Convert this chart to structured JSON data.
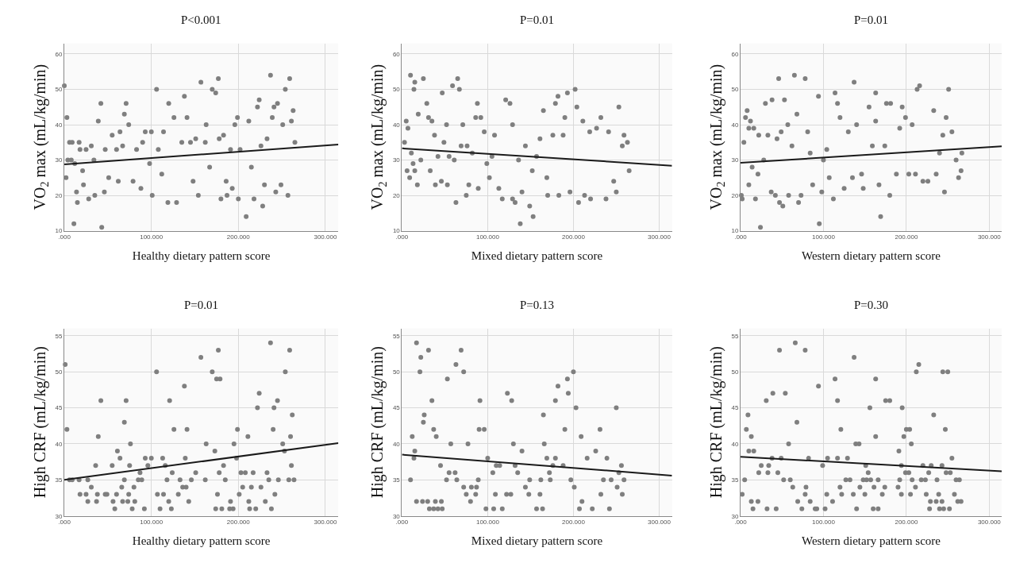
{
  "chart_data": [
    {
      "type": "scatter",
      "title": "P<0.001",
      "xlabel": "Healthy dietary pattern score",
      "ylabel": "VO$_{2}$ max (mL/kg/min)",
      "xlim": [
        0,
        315
      ],
      "ylim": [
        10,
        63
      ],
      "xticks": [
        {
          "value": 0,
          "label": ".000"
        },
        {
          "value": 100,
          "label": "100.000"
        },
        {
          "value": 200,
          "label": "200.000"
        },
        {
          "value": 300,
          "label": "300.000"
        }
      ],
      "yticks": [
        10,
        20,
        30,
        40,
        50,
        60
      ],
      "grid": true,
      "marker": "circle",
      "series": [
        {
          "color": "#7f7f7f",
          "x": [
            0,
            3,
            2,
            4,
            6,
            9,
            8,
            11,
            12,
            14,
            15,
            17,
            18,
            21,
            22,
            25,
            28,
            31,
            34,
            35,
            39,
            42,
            43,
            46,
            47,
            51,
            55,
            60,
            62,
            64,
            67,
            69,
            71,
            74,
            79,
            83,
            88,
            90,
            93,
            98,
            100,
            101,
            106,
            108,
            112,
            114,
            119,
            120,
            126,
            129,
            135,
            138,
            141,
            145,
            148,
            151,
            154,
            157,
            162,
            163,
            167,
            170,
            174,
            177,
            178,
            180,
            183,
            186,
            187,
            191,
            193,
            196,
            199,
            200,
            202,
            209,
            212,
            215,
            218,
            222,
            224,
            226,
            228,
            230,
            233,
            237,
            239,
            241,
            243,
            245,
            249,
            251,
            254,
            257,
            259,
            261,
            263,
            265
          ],
          "values": [
            51,
            42,
            25,
            30,
            35,
            35,
            30,
            12,
            29,
            21,
            18,
            35,
            33,
            27,
            23,
            33,
            19,
            34,
            30,
            20,
            41,
            46,
            11,
            21,
            33,
            25,
            37,
            33,
            24,
            38,
            34,
            43,
            46,
            40,
            24,
            33,
            22,
            35,
            38,
            29,
            38,
            20,
            50,
            33,
            26,
            38,
            18,
            46,
            42,
            18,
            35,
            48,
            42,
            35,
            24,
            36,
            20,
            52,
            35,
            40,
            28,
            50,
            49,
            53,
            36,
            19,
            37,
            24,
            20,
            33,
            22,
            40,
            42,
            19,
            33,
            14,
            41,
            28,
            19,
            45,
            47,
            34,
            17,
            23,
            36,
            54,
            42,
            45,
            21,
            46,
            23,
            40,
            50,
            20,
            53,
            41,
            44,
            35
          ]
        },
        {
          "type": "line",
          "color": "#1a1a1a",
          "x": [
            0,
            315
          ],
          "values": [
            28.8,
            34.4
          ],
          "marker": "none"
        }
      ]
    },
    {
      "type": "scatter",
      "title": "P=0.01",
      "xlabel": "Mixed dietary pattern score",
      "ylabel": "VO$_{2}$ max (mL/kg/min)",
      "xlim": [
        0,
        315
      ],
      "ylim": [
        10,
        63
      ],
      "xticks": [
        {
          "value": 0,
          "label": ".000"
        },
        {
          "value": 100,
          "label": "100.000"
        },
        {
          "value": 200,
          "label": "200.000"
        },
        {
          "value": 300,
          "label": "300.000"
        }
      ],
      "yticks": [
        10,
        20,
        30,
        40,
        50,
        60
      ],
      "grid": true,
      "marker": "circle",
      "series": [
        {
          "color": "#7f7f7f",
          "x": [
            3,
            5,
            6,
            7,
            9,
            10,
            11,
            13,
            14,
            15,
            15,
            18,
            19,
            22,
            25,
            29,
            31,
            33,
            35,
            38,
            39,
            42,
            46,
            47,
            49,
            52,
            53,
            55,
            59,
            61,
            63,
            65,
            67,
            69,
            71,
            75,
            76,
            78,
            82,
            86,
            88,
            89,
            92,
            96,
            99,
            102,
            105,
            108,
            113,
            117,
            121,
            126,
            129,
            129,
            132,
            136,
            138,
            140,
            144,
            149,
            152,
            153,
            157,
            161,
            165,
            169,
            170,
            176,
            179,
            182,
            183,
            188,
            190,
            193,
            196,
            202,
            204,
            206,
            211,
            213,
            219,
            220,
            227,
            232,
            238,
            241,
            247,
            250,
            253,
            257,
            259,
            263,
            265
          ],
          "values": [
            35,
            41,
            27,
            39,
            25,
            54,
            32,
            29,
            50,
            52,
            27,
            23,
            43,
            30,
            53,
            46,
            42,
            27,
            41,
            37,
            23,
            31,
            24,
            49,
            35,
            40,
            23,
            31,
            51,
            30,
            18,
            53,
            50,
            34,
            40,
            20,
            34,
            23,
            32,
            42,
            46,
            22,
            42,
            38,
            29,
            25,
            31,
            37,
            22,
            19,
            47,
            46,
            40,
            19,
            18,
            30,
            12,
            21,
            34,
            17,
            27,
            14,
            31,
            36,
            44,
            25,
            20,
            37,
            46,
            48,
            20,
            37,
            42,
            49,
            21,
            50,
            45,
            18,
            41,
            20,
            38,
            19,
            39,
            42,
            19,
            38,
            24,
            21,
            45,
            34,
            37,
            35,
            27
          ]
        },
        {
          "type": "line",
          "color": "#1a1a1a",
          "x": [
            0,
            315
          ],
          "values": [
            33.3,
            28.4
          ],
          "marker": "none"
        }
      ]
    },
    {
      "type": "scatter",
      "title": "P=0.01",
      "xlabel": "Western dietary pattern score",
      "ylabel": "VO$_{2}$ max (mL/kg/min)",
      "xlim": [
        0,
        315
      ],
      "ylim": [
        10,
        63
      ],
      "xticks": [
        {
          "value": 0,
          "label": ".000"
        },
        {
          "value": 100,
          "label": "100.000"
        },
        {
          "value": 200,
          "label": "200.000"
        },
        {
          "value": 300,
          "label": "300.000"
        }
      ],
      "yticks": [
        10,
        20,
        30,
        40,
        50,
        60
      ],
      "grid": true,
      "marker": "circle",
      "series": [
        {
          "color": "#7f7f7f",
          "x": [
            1,
            2,
            4,
            6,
            8,
            10,
            10,
            12,
            14,
            16,
            18,
            21,
            22,
            24,
            28,
            30,
            33,
            37,
            38,
            42,
            44,
            46,
            47,
            49,
            51,
            53,
            57,
            58,
            62,
            65,
            68,
            70,
            73,
            78,
            81,
            84,
            87,
            94,
            95,
            98,
            100,
            104,
            107,
            112,
            114,
            117,
            120,
            125,
            130,
            135,
            137,
            140,
            146,
            148,
            155,
            159,
            163,
            163,
            167,
            169,
            174,
            176,
            180,
            181,
            188,
            192,
            195,
            199,
            203,
            207,
            211,
            213,
            216,
            220,
            226,
            233,
            236,
            240,
            244,
            246,
            248,
            251,
            255,
            260,
            263,
            266,
            267
          ],
          "values": [
            20,
            19,
            35,
            42,
            44,
            39,
            23,
            41,
            28,
            39,
            19,
            26,
            37,
            11,
            30,
            46,
            37,
            21,
            47,
            20,
            36,
            53,
            18,
            38,
            17,
            47,
            40,
            20,
            34,
            54,
            43,
            18,
            20,
            53,
            38,
            32,
            23,
            48,
            12,
            21,
            30,
            33,
            25,
            19,
            49,
            46,
            42,
            22,
            38,
            25,
            52,
            40,
            26,
            22,
            45,
            34,
            41,
            49,
            23,
            14,
            34,
            46,
            20,
            46,
            26,
            39,
            45,
            42,
            26,
            40,
            26,
            50,
            51,
            24,
            24,
            44,
            26,
            32,
            37,
            21,
            42,
            50,
            38,
            30,
            25,
            27,
            32
          ]
        },
        {
          "type": "line",
          "color": "#1a1a1a",
          "x": [
            0,
            315
          ],
          "values": [
            29.2,
            33.9
          ],
          "marker": "none"
        }
      ]
    },
    {
      "type": "scatter",
      "title": "P=0.01",
      "xlabel": "Healthy dietary pattern score",
      "ylabel": "High CRF (mL/kg/min)",
      "xlim": [
        0,
        315
      ],
      "ylim": [
        30,
        56
      ],
      "xticks": [
        {
          "value": 0,
          "label": ".000"
        },
        {
          "value": 100,
          "label": "100.000"
        },
        {
          "value": 200,
          "label": "200.000"
        },
        {
          "value": 300,
          "label": "300.000"
        }
      ],
      "yticks": [
        30,
        35,
        40,
        45,
        50,
        55
      ],
      "grid": true,
      "marker": "circle",
      "series": [
        {
          "color": "#7f7f7f",
          "x": [
            1,
            3,
            6,
            9,
            17,
            18,
            25,
            27,
            27,
            31,
            36,
            37,
            38,
            39,
            42,
            47,
            49,
            55,
            56,
            58,
            60,
            61,
            64,
            66,
            67,
            69,
            69,
            71,
            73,
            74,
            75,
            76,
            78,
            80,
            81,
            85,
            87,
            89,
            92,
            93,
            96,
            100,
            106,
            107,
            110,
            113,
            114,
            116,
            118,
            120,
            121,
            123,
            124,
            126,
            131,
            133,
            136,
            138,
            139,
            140,
            141,
            143,
            146,
            151,
            157,
            162,
            163,
            170,
            173,
            174,
            175,
            176,
            177,
            178,
            179,
            181,
            183,
            185,
            190,
            191,
            194,
            195,
            198,
            199,
            201,
            203,
            205,
            208,
            211,
            212,
            213,
            215,
            217,
            220,
            222,
            224,
            226,
            231,
            233,
            235,
            237,
            238,
            240,
            241,
            242,
            245,
            246,
            251,
            253,
            254,
            258,
            259,
            260,
            261,
            262,
            264
          ],
          "values": [
            51,
            42,
            35,
            35,
            35,
            33,
            33,
            32,
            35,
            34,
            37,
            32,
            33,
            41,
            46,
            33,
            33,
            37,
            32,
            31,
            33,
            39,
            38,
            34,
            32,
            35,
            43,
            46,
            32,
            33,
            37,
            40,
            31,
            34,
            32,
            35,
            36,
            35,
            31,
            38,
            37,
            38,
            50,
            33,
            31,
            38,
            33,
            37,
            35,
            32,
            46,
            31,
            36,
            42,
            33,
            35,
            34,
            48,
            38,
            34,
            42,
            32,
            35,
            36,
            52,
            35,
            40,
            50,
            39,
            31,
            49,
            33,
            53,
            36,
            49,
            31,
            37,
            35,
            31,
            32,
            31,
            40,
            38,
            42,
            33,
            36,
            34,
            36,
            41,
            32,
            31,
            34,
            36,
            31,
            45,
            47,
            34,
            32,
            36,
            35,
            54,
            31,
            42,
            45,
            33,
            46,
            35,
            40,
            39,
            50,
            35,
            53,
            41,
            37,
            44,
            35
          ]
        },
        {
          "type": "line",
          "color": "#1a1a1a",
          "x": [
            0,
            315
          ],
          "values": [
            35.0,
            40.1
          ],
          "marker": "none"
        }
      ]
    },
    {
      "type": "scatter",
      "title": "P=0.13",
      "xlabel": "Mixed dietary pattern score",
      "ylabel": "High CRF (mL/kg/min)",
      "xlim": [
        0,
        315
      ],
      "ylim": [
        30,
        56
      ],
      "xticks": [
        {
          "value": 0,
          "label": ".000"
        },
        {
          "value": 100,
          "label": "100.000"
        },
        {
          "value": 200,
          "label": "200.000"
        },
        {
          "value": 300,
          "label": "300.000"
        }
      ],
      "yticks": [
        30,
        35,
        40,
        45,
        50,
        55
      ],
      "grid": true,
      "marker": "circle",
      "series": [
        {
          "color": "#7f7f7f",
          "x": [
            10,
            12,
            14,
            15,
            17,
            17,
            21,
            22,
            24,
            25,
            26,
            30,
            31,
            32,
            35,
            37,
            37,
            39,
            40,
            42,
            45,
            46,
            47,
            52,
            53,
            55,
            57,
            62,
            63,
            64,
            69,
            72,
            72,
            75,
            77,
            80,
            81,
            86,
            87,
            89,
            90,
            91,
            96,
            98,
            100,
            106,
            107,
            109,
            110,
            114,
            117,
            122,
            123,
            127,
            128,
            130,
            132,
            135,
            140,
            144,
            148,
            149,
            157,
            161,
            162,
            164,
            165,
            166,
            169,
            172,
            173,
            176,
            179,
            179,
            182,
            188,
            190,
            193,
            194,
            197,
            200,
            201,
            203,
            207,
            209,
            210,
            216,
            222,
            226,
            231,
            232,
            235,
            239,
            242,
            244,
            250,
            251,
            253,
            256,
            257,
            259
          ],
          "values": [
            35,
            41,
            38,
            39,
            54,
            32,
            50,
            52,
            32,
            43,
            44,
            32,
            53,
            31,
            46,
            31,
            42,
            32,
            41,
            31,
            37,
            32,
            31,
            35,
            49,
            36,
            40,
            36,
            51,
            35,
            53,
            50,
            34,
            33,
            40,
            32,
            34,
            33,
            34,
            35,
            42,
            46,
            42,
            31,
            38,
            36,
            31,
            33,
            37,
            37,
            31,
            33,
            47,
            33,
            46,
            40,
            37,
            36,
            39,
            34,
            33,
            35,
            31,
            33,
            35,
            31,
            44,
            40,
            38,
            36,
            35,
            37,
            38,
            46,
            48,
            37,
            42,
            49,
            47,
            35,
            50,
            34,
            45,
            31,
            41,
            32,
            38,
            31,
            39,
            42,
            33,
            35,
            38,
            31,
            35,
            45,
            34,
            36,
            37,
            33,
            35
          ]
        },
        {
          "type": "line",
          "color": "#1a1a1a",
          "x": [
            0,
            315
          ],
          "values": [
            38.5,
            35.6
          ],
          "marker": "none"
        }
      ]
    },
    {
      "type": "scatter",
      "title": "P=0.30",
      "xlabel": "Western dietary pattern score",
      "ylabel": "High CRF (mL/kg/min)",
      "xlim": [
        0,
        315
      ],
      "ylim": [
        30,
        56
      ],
      "xticks": [
        {
          "value": 0,
          "label": ".000"
        },
        {
          "value": 100,
          "label": "100.000"
        },
        {
          "value": 200,
          "label": "200.000"
        },
        {
          "value": 300,
          "label": "300.000"
        }
      ],
      "yticks": [
        30,
        35,
        40,
        45,
        50,
        55
      ],
      "grid": true,
      "marker": "circle",
      "series": [
        {
          "color": "#7f7f7f",
          "x": [
            2,
            5,
            7,
            9,
            10,
            13,
            13,
            15,
            16,
            21,
            22,
            25,
            31,
            32,
            33,
            34,
            38,
            39,
            43,
            45,
            47,
            49,
            52,
            54,
            58,
            60,
            63,
            66,
            68,
            69,
            74,
            78,
            78,
            79,
            82,
            84,
            90,
            92,
            94,
            99,
            102,
            104,
            105,
            111,
            114,
            117,
            117,
            120,
            121,
            122,
            127,
            129,
            132,
            136,
            137,
            139,
            140,
            143,
            144,
            148,
            150,
            151,
            152,
            154,
            156,
            157,
            160,
            161,
            163,
            163,
            166,
            166,
            171,
            174,
            175,
            180,
            190,
            191,
            192,
            194,
            194,
            195,
            197,
            199,
            200,
            203,
            204,
            205,
            206,
            207,
            211,
            212,
            215,
            218,
            220,
            223,
            224,
            227,
            228,
            229,
            230,
            233,
            236,
            237,
            239,
            240,
            243,
            243,
            244,
            245,
            247,
            248,
            250,
            252,
            253,
            255,
            258,
            260,
            262,
            264,
            266
          ],
          "values": [
            33,
            35,
            42,
            44,
            39,
            41,
            32,
            31,
            39,
            32,
            36,
            37,
            46,
            31,
            36,
            37,
            38,
            47,
            31,
            36,
            53,
            38,
            35,
            47,
            40,
            35,
            34,
            54,
            43,
            32,
            31,
            33,
            53,
            34,
            38,
            32,
            31,
            31,
            48,
            37,
            31,
            33,
            38,
            32,
            49,
            46,
            38,
            34,
            42,
            33,
            35,
            38,
            35,
            33,
            52,
            40,
            31,
            40,
            34,
            35,
            33,
            37,
            35,
            36,
            45,
            35,
            31,
            34,
            41,
            49,
            35,
            31,
            33,
            34,
            46,
            46,
            34,
            39,
            35,
            37,
            33,
            45,
            41,
            36,
            42,
            36,
            42,
            33,
            40,
            35,
            34,
            50,
            51,
            35,
            37,
            35,
            33,
            36,
            31,
            32,
            37,
            44,
            32,
            35,
            33,
            31,
            32,
            37,
            50,
            31,
            42,
            36,
            50,
            31,
            36,
            38,
            33,
            35,
            32,
            35,
            32
          ]
        },
        {
          "type": "line",
          "color": "#1a1a1a",
          "x": [
            0,
            315
          ],
          "values": [
            38.2,
            36.2
          ],
          "marker": "none"
        }
      ]
    }
  ]
}
